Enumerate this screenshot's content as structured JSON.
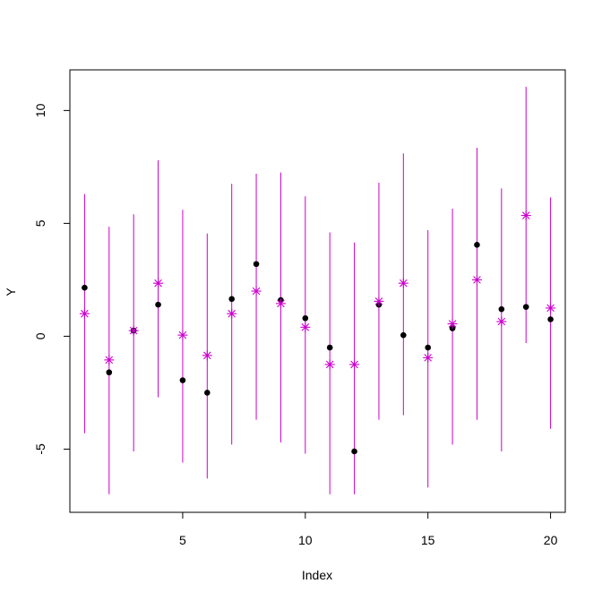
{
  "chart_data": {
    "type": "scatter",
    "title": "",
    "xlabel": "Index",
    "ylabel": "Y",
    "xlim": [
      0.4,
      20.6
    ],
    "ylim": [
      -7.8,
      11.8
    ],
    "x_ticks": [
      5,
      10,
      15,
      20
    ],
    "y_ticks": [
      -5,
      0,
      5,
      10
    ],
    "grid": false,
    "colors": {
      "points": "#000000",
      "predicted": "#cc00cc",
      "interval": "#cc00cc"
    },
    "x": [
      1,
      2,
      3,
      4,
      5,
      6,
      7,
      8,
      9,
      10,
      11,
      12,
      13,
      14,
      15,
      16,
      17,
      18,
      19,
      20
    ],
    "series": [
      {
        "marker": "filled-circle",
        "values": [
          2.15,
          -1.6,
          0.25,
          1.4,
          -1.95,
          -2.5,
          1.65,
          3.2,
          1.6,
          0.8,
          -0.5,
          -5.1,
          1.4,
          0.05,
          -0.5,
          0.35,
          4.05,
          1.2,
          1.3,
          0.75
        ]
      },
      {
        "marker": "asterisk",
        "values": [
          1.0,
          -1.05,
          0.25,
          2.35,
          0.05,
          -0.85,
          1.0,
          2.0,
          1.45,
          0.4,
          -1.25,
          -1.25,
          1.55,
          2.35,
          -0.95,
          0.55,
          2.5,
          0.65,
          5.35,
          1.25
        ]
      }
    ],
    "intervals": {
      "lower": [
        -4.3,
        -7.0,
        -5.1,
        -2.7,
        -5.6,
        -6.3,
        -4.8,
        -3.7,
        -4.7,
        -5.2,
        -7.0,
        -7.0,
        -3.7,
        -3.5,
        -6.7,
        -4.8,
        -3.7,
        -5.1,
        -0.3,
        -4.1
      ],
      "upper": [
        6.3,
        4.85,
        5.4,
        7.8,
        5.6,
        4.55,
        6.75,
        7.2,
        7.25,
        6.2,
        4.6,
        4.15,
        6.8,
        8.1,
        4.7,
        5.65,
        8.35,
        6.55,
        11.05,
        6.15
      ]
    }
  }
}
